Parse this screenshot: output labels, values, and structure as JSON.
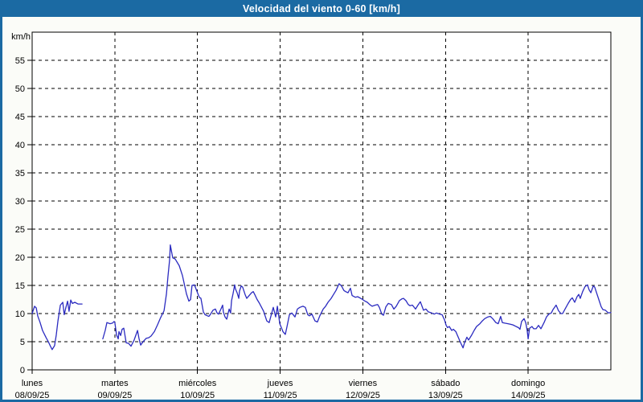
{
  "header": {
    "title": "Velocidad del viento 0-60 [km/h]"
  },
  "colors": {
    "frame_and_titlebar": "#1b6aa3",
    "titlebar_text": "#ffffff",
    "interior_background": "#fbfcf8",
    "plot_background": "#ffffff",
    "grid": "#000000",
    "line": "#2b2bc0"
  },
  "chart_data": {
    "type": "line",
    "title": "Velocidad del viento 0-60 [km/h]",
    "ylabel": "km/h",
    "xlabel": "",
    "ylim": [
      0,
      60
    ],
    "y_ticks": [
      0,
      5,
      10,
      15,
      20,
      25,
      30,
      35,
      40,
      45,
      50,
      55
    ],
    "grid": "dashed",
    "legend": "none",
    "x_span_hours": 168,
    "x_days": [
      {
        "day": "lunes",
        "date": "08/09/25"
      },
      {
        "day": "martes",
        "date": "09/09/25"
      },
      {
        "day": "miércoles",
        "date": "10/09/25"
      },
      {
        "day": "jueves",
        "date": "11/09/25"
      },
      {
        "day": "viernes",
        "date": "12/09/25"
      },
      {
        "day": "sábado",
        "date": "13/09/25"
      },
      {
        "day": "domingo",
        "date": "14/09/25"
      }
    ],
    "line_color": "#2b2bc0",
    "series": [
      {
        "name": "Velocidad del viento (km/h)",
        "note": "two segments: data gap lunes ~14:30-20:30; points are [hours_from_lunes_00h, km/h]",
        "segments": [
          [
            [
              0,
              10.0
            ],
            [
              0.7,
              11.3
            ],
            [
              1.2,
              11.0
            ],
            [
              1.6,
              9.6
            ],
            [
              2.3,
              8.4
            ],
            [
              3.0,
              7.0
            ],
            [
              4.0,
              5.8
            ],
            [
              4.7,
              5.0
            ],
            [
              5.4,
              4.1
            ],
            [
              5.8,
              3.6
            ],
            [
              6.5,
              4.3
            ],
            [
              7.0,
              6.2
            ],
            [
              7.5,
              8.7
            ],
            [
              8.2,
              11.5
            ],
            [
              8.9,
              12.0
            ],
            [
              9.3,
              9.8
            ],
            [
              9.8,
              11.1
            ],
            [
              10.3,
              12.2
            ],
            [
              10.7,
              10.4
            ],
            [
              11.2,
              12.4
            ],
            [
              11.7,
              11.8
            ],
            [
              12.4,
              12.0
            ],
            [
              13.3,
              11.7
            ],
            [
              14.5,
              11.7
            ]
          ],
          [
            [
              20.5,
              5.5
            ],
            [
              21.2,
              7.0
            ],
            [
              21.7,
              8.4
            ],
            [
              22.6,
              8.2
            ],
            [
              23.3,
              8.3
            ],
            [
              23.8,
              8.6
            ],
            [
              24.0,
              8.4
            ],
            [
              24.5,
              6.2
            ],
            [
              25.0,
              5.5
            ],
            [
              25.2,
              6.8
            ],
            [
              25.7,
              6.1
            ],
            [
              26.1,
              7.2
            ],
            [
              26.6,
              7.4
            ],
            [
              27.3,
              4.8
            ],
            [
              28.0,
              4.7
            ],
            [
              28.7,
              4.2
            ],
            [
              29.6,
              5.3
            ],
            [
              30.6,
              7.0
            ],
            [
              31.0,
              5.6
            ],
            [
              31.5,
              4.4
            ],
            [
              32.2,
              5.0
            ],
            [
              33.1,
              5.6
            ],
            [
              33.8,
              5.7
            ],
            [
              34.5,
              6.0
            ],
            [
              35.5,
              6.8
            ],
            [
              36.4,
              8.0
            ],
            [
              37.3,
              9.3
            ],
            [
              38.3,
              10.5
            ],
            [
              39.0,
              13.5
            ],
            [
              39.4,
              16.5
            ],
            [
              39.9,
              19.5
            ],
            [
              40.1,
              22.2
            ],
            [
              40.8,
              19.9
            ],
            [
              41.5,
              19.7
            ],
            [
              42.7,
              18.5
            ],
            [
              43.6,
              16.8
            ],
            [
              44.8,
              13.5
            ],
            [
              45.5,
              12.2
            ],
            [
              46.0,
              12.5
            ],
            [
              46.4,
              15.0
            ],
            [
              47.1,
              15.1
            ],
            [
              47.8,
              14.0
            ],
            [
              48.5,
              12.9
            ],
            [
              49.0,
              12.7
            ],
            [
              49.7,
              10.3
            ],
            [
              50.2,
              9.8
            ],
            [
              50.9,
              9.6
            ],
            [
              51.3,
              9.5
            ],
            [
              51.8,
              9.9
            ],
            [
              52.5,
              10.6
            ],
            [
              53.2,
              10.8
            ],
            [
              53.7,
              10.1
            ],
            [
              54.1,
              9.9
            ],
            [
              54.8,
              10.8
            ],
            [
              55.3,
              11.5
            ],
            [
              55.5,
              10.3
            ],
            [
              56.0,
              9.4
            ],
            [
              56.5,
              9.0
            ],
            [
              57.2,
              10.8
            ],
            [
              57.6,
              10.1
            ],
            [
              57.9,
              12.3
            ],
            [
              58.3,
              13.5
            ],
            [
              58.8,
              15.1
            ],
            [
              59.0,
              14.4
            ],
            [
              59.5,
              13.7
            ],
            [
              60.0,
              12.7
            ],
            [
              60.2,
              14.0
            ],
            [
              60.7,
              14.9
            ],
            [
              61.1,
              14.7
            ],
            [
              61.8,
              13.4
            ],
            [
              62.3,
              12.7
            ],
            [
              63.0,
              13.2
            ],
            [
              63.7,
              13.7
            ],
            [
              64.2,
              13.9
            ],
            [
              64.6,
              13.4
            ],
            [
              65.3,
              12.5
            ],
            [
              66.0,
              11.8
            ],
            [
              67.2,
              10.4
            ],
            [
              68.1,
              8.7
            ],
            [
              68.8,
              8.4
            ],
            [
              70.0,
              11.1
            ],
            [
              70.7,
              9.4
            ],
            [
              71.2,
              11.3
            ],
            [
              71.9,
              8.2
            ],
            [
              72.8,
              6.8
            ],
            [
              73.5,
              6.3
            ],
            [
              74.0,
              7.7
            ],
            [
              74.7,
              9.8
            ],
            [
              75.4,
              10.1
            ],
            [
              76.3,
              9.4
            ],
            [
              77.0,
              10.8
            ],
            [
              77.7,
              11.1
            ],
            [
              78.6,
              11.3
            ],
            [
              79.3,
              11.1
            ],
            [
              80.0,
              9.8
            ],
            [
              80.5,
              9.6
            ],
            [
              81.2,
              9.9
            ],
            [
              82.1,
              8.7
            ],
            [
              82.8,
              8.5
            ],
            [
              83.5,
              9.6
            ],
            [
              84.5,
              10.8
            ],
            [
              85.2,
              11.3
            ],
            [
              85.9,
              12.0
            ],
            [
              86.8,
              12.7
            ],
            [
              87.5,
              13.4
            ],
            [
              88.2,
              14.1
            ],
            [
              89.1,
              15.3
            ],
            [
              89.8,
              14.9
            ],
            [
              90.5,
              14.1
            ],
            [
              91.0,
              13.9
            ],
            [
              91.7,
              13.7
            ],
            [
              92.4,
              14.5
            ],
            [
              92.9,
              13.2
            ],
            [
              93.8,
              12.9
            ],
            [
              94.5,
              13.0
            ],
            [
              95.7,
              12.6
            ],
            [
              96.4,
              12.3
            ],
            [
              97.3,
              12.0
            ],
            [
              98.0,
              11.6
            ],
            [
              98.7,
              11.3
            ],
            [
              99.6,
              11.5
            ],
            [
              100.3,
              11.6
            ],
            [
              100.8,
              11.1
            ],
            [
              101.5,
              9.9
            ],
            [
              102.0,
              9.7
            ],
            [
              102.7,
              11.2
            ],
            [
              103.4,
              11.8
            ],
            [
              104.3,
              11.6
            ],
            [
              105.0,
              10.8
            ],
            [
              105.7,
              11.3
            ],
            [
              106.6,
              12.3
            ],
            [
              107.3,
              12.6
            ],
            [
              107.8,
              12.7
            ],
            [
              108.5,
              12.3
            ],
            [
              109.2,
              11.6
            ],
            [
              109.7,
              11.4
            ],
            [
              110.4,
              11.5
            ],
            [
              111.3,
              10.8
            ],
            [
              112.0,
              11.5
            ],
            [
              112.7,
              12.1
            ],
            [
              113.6,
              10.6
            ],
            [
              114.3,
              10.8
            ],
            [
              115.0,
              10.3
            ],
            [
              116.0,
              10.1
            ],
            [
              116.7,
              9.9
            ],
            [
              117.4,
              10.1
            ],
            [
              118.3,
              9.9
            ],
            [
              119.0,
              9.8
            ],
            [
              119.7,
              8.9
            ],
            [
              120.2,
              7.9
            ],
            [
              120.6,
              7.5
            ],
            [
              121.1,
              7.7
            ],
            [
              121.8,
              7.0
            ],
            [
              122.3,
              7.2
            ],
            [
              123.0,
              6.8
            ],
            [
              123.7,
              5.8
            ],
            [
              124.4,
              4.8
            ],
            [
              125.1,
              3.9
            ],
            [
              125.5,
              4.8
            ],
            [
              126.2,
              5.8
            ],
            [
              126.7,
              5.3
            ],
            [
              127.6,
              6.2
            ],
            [
              128.3,
              7.0
            ],
            [
              129.0,
              7.7
            ],
            [
              130.0,
              8.2
            ],
            [
              130.7,
              8.7
            ],
            [
              131.4,
              9.1
            ],
            [
              132.3,
              9.4
            ],
            [
              133.0,
              9.5
            ],
            [
              133.7,
              9.1
            ],
            [
              134.6,
              8.4
            ],
            [
              135.3,
              8.2
            ],
            [
              136.0,
              9.5
            ],
            [
              136.5,
              8.4
            ],
            [
              137.2,
              8.3
            ],
            [
              138.1,
              8.2
            ],
            [
              138.8,
              8.1
            ],
            [
              139.5,
              8.0
            ],
            [
              140.5,
              7.7
            ],
            [
              141.2,
              7.5
            ],
            [
              141.6,
              7.2
            ],
            [
              142.1,
              8.6
            ],
            [
              142.8,
              9.1
            ],
            [
              143.3,
              8.4
            ],
            [
              143.7,
              7.0
            ],
            [
              144.0,
              5.5
            ],
            [
              144.4,
              7.4
            ],
            [
              145.1,
              7.7
            ],
            [
              145.6,
              7.3
            ],
            [
              146.3,
              7.3
            ],
            [
              147.0,
              7.9
            ],
            [
              147.7,
              7.3
            ],
            [
              148.6,
              8.4
            ],
            [
              149.3,
              9.4
            ],
            [
              150.0,
              9.9
            ],
            [
              150.7,
              10.1
            ],
            [
              151.2,
              10.7
            ],
            [
              152.1,
              11.5
            ],
            [
              152.8,
              10.5
            ],
            [
              153.5,
              10.0
            ],
            [
              154.0,
              10.0
            ],
            [
              154.7,
              10.8
            ],
            [
              155.6,
              11.8
            ],
            [
              156.3,
              12.5
            ],
            [
              156.8,
              12.8
            ],
            [
              157.5,
              12.0
            ],
            [
              158.2,
              13.0
            ],
            [
              158.7,
              13.4
            ],
            [
              159.1,
              12.7
            ],
            [
              159.8,
              13.9
            ],
            [
              160.5,
              14.8
            ],
            [
              161.2,
              15.1
            ],
            [
              161.7,
              14.2
            ],
            [
              162.2,
              13.7
            ],
            [
              162.9,
              14.9
            ],
            [
              163.3,
              14.7
            ],
            [
              164.0,
              13.4
            ],
            [
              164.5,
              12.5
            ],
            [
              165.2,
              11.2
            ],
            [
              165.7,
              10.7
            ],
            [
              166.4,
              10.6
            ],
            [
              167.3,
              10.1
            ],
            [
              168.0,
              10.2
            ]
          ]
        ]
      }
    ]
  }
}
